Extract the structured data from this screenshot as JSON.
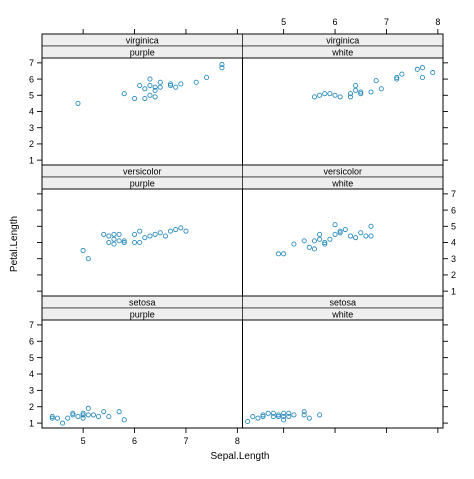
{
  "colors": {
    "point": "#2b8cbe",
    "strip_fill": "#eeeeee",
    "axis": "#000000"
  },
  "chart_data": {
    "type": "scatter",
    "xlabel": "Sepal.Length",
    "ylabel": "Petal.Length",
    "xlim": [
      4.2,
      8.1
    ],
    "ylim": [
      0.7,
      7.3
    ],
    "xticks": [
      5,
      6,
      7,
      8
    ],
    "yticks": [
      1,
      2,
      3,
      4,
      5,
      6,
      7
    ],
    "grid": false,
    "layout": "2 columns x 3 rows",
    "panels": [
      {
        "species": "setosa",
        "color": "purple",
        "col": 0,
        "row": 2,
        "points": [
          [
            4.4,
            1.4
          ],
          [
            4.5,
            1.3
          ],
          [
            4.6,
            1.0
          ],
          [
            4.7,
            1.3
          ],
          [
            4.8,
            1.5
          ],
          [
            4.8,
            1.6
          ],
          [
            4.9,
            1.4
          ],
          [
            5.0,
            1.5
          ],
          [
            5.0,
            1.3
          ],
          [
            5.0,
            1.6
          ],
          [
            5.1,
            1.9
          ],
          [
            5.1,
            1.5
          ],
          [
            5.2,
            1.5
          ],
          [
            5.3,
            1.4
          ],
          [
            5.4,
            1.7
          ],
          [
            5.7,
            1.7
          ],
          [
            5.8,
            1.2
          ],
          [
            5.5,
            1.4
          ],
          [
            4.4,
            1.3
          ]
        ]
      },
      {
        "species": "setosa",
        "color": "white",
        "col": 1,
        "row": 2,
        "points": [
          [
            4.3,
            1.1
          ],
          [
            4.4,
            1.4
          ],
          [
            4.6,
            1.4
          ],
          [
            4.6,
            1.5
          ],
          [
            4.7,
            1.6
          ],
          [
            4.8,
            1.6
          ],
          [
            4.8,
            1.4
          ],
          [
            4.9,
            1.5
          ],
          [
            4.9,
            1.4
          ],
          [
            5.0,
            1.2
          ],
          [
            5.0,
            1.4
          ],
          [
            5.0,
            1.6
          ],
          [
            5.1,
            1.4
          ],
          [
            5.1,
            1.6
          ],
          [
            5.2,
            1.5
          ],
          [
            5.4,
            1.7
          ],
          [
            5.4,
            1.5
          ],
          [
            5.5,
            1.3
          ],
          [
            5.7,
            1.5
          ],
          [
            4.5,
            1.3
          ]
        ]
      },
      {
        "species": "versicolor",
        "color": "purple",
        "col": 0,
        "row": 1,
        "points": [
          [
            5.0,
            3.5
          ],
          [
            5.1,
            3.0
          ],
          [
            5.5,
            4.0
          ],
          [
            5.5,
            4.4
          ],
          [
            5.6,
            3.9
          ],
          [
            5.6,
            4.5
          ],
          [
            5.6,
            4.2
          ],
          [
            5.7,
            4.1
          ],
          [
            5.7,
            4.5
          ],
          [
            5.8,
            4.0
          ],
          [
            5.8,
            4.1
          ],
          [
            6.0,
            4.5
          ],
          [
            6.0,
            4.0
          ],
          [
            6.1,
            4.0
          ],
          [
            6.1,
            4.7
          ],
          [
            6.2,
            4.3
          ],
          [
            6.3,
            4.4
          ],
          [
            6.4,
            4.5
          ],
          [
            6.5,
            4.6
          ],
          [
            6.6,
            4.4
          ],
          [
            6.7,
            4.7
          ],
          [
            6.8,
            4.8
          ],
          [
            6.9,
            4.9
          ],
          [
            7.0,
            4.7
          ],
          [
            5.4,
            4.5
          ]
        ]
      },
      {
        "species": "versicolor",
        "color": "white",
        "col": 1,
        "row": 1,
        "points": [
          [
            4.9,
            3.3
          ],
          [
            5.0,
            3.3
          ],
          [
            5.2,
            3.9
          ],
          [
            5.4,
            4.1
          ],
          [
            5.5,
            3.7
          ],
          [
            5.6,
            4.1
          ],
          [
            5.6,
            3.6
          ],
          [
            5.7,
            4.2
          ],
          [
            5.7,
            4.5
          ],
          [
            5.8,
            3.9
          ],
          [
            5.9,
            4.2
          ],
          [
            6.0,
            5.1
          ],
          [
            6.0,
            4.5
          ],
          [
            6.1,
            4.6
          ],
          [
            6.2,
            4.8
          ],
          [
            6.3,
            4.4
          ],
          [
            6.4,
            4.3
          ],
          [
            6.5,
            4.6
          ],
          [
            6.6,
            4.4
          ],
          [
            6.7,
            4.4
          ],
          [
            6.7,
            5.0
          ],
          [
            6.1,
            4.7
          ],
          [
            5.8,
            4.0
          ]
        ]
      },
      {
        "species": "virginica",
        "color": "purple",
        "col": 0,
        "row": 0,
        "points": [
          [
            4.9,
            4.5
          ],
          [
            5.8,
            5.1
          ],
          [
            6.0,
            4.8
          ],
          [
            6.1,
            5.6
          ],
          [
            6.2,
            5.4
          ],
          [
            6.3,
            5.0
          ],
          [
            6.3,
            5.6
          ],
          [
            6.3,
            6.0
          ],
          [
            6.4,
            5.5
          ],
          [
            6.4,
            5.3
          ],
          [
            6.5,
            5.8
          ],
          [
            6.5,
            5.5
          ],
          [
            6.7,
            5.7
          ],
          [
            6.7,
            5.6
          ],
          [
            6.8,
            5.5
          ],
          [
            6.9,
            5.7
          ],
          [
            7.2,
            5.8
          ],
          [
            7.4,
            6.1
          ],
          [
            7.7,
            6.7
          ],
          [
            7.7,
            6.9
          ],
          [
            6.2,
            4.8
          ],
          [
            6.4,
            4.9
          ]
        ]
      },
      {
        "species": "virginica",
        "color": "white",
        "col": 1,
        "row": 0,
        "points": [
          [
            5.6,
            4.9
          ],
          [
            5.7,
            5.0
          ],
          [
            5.8,
            5.1
          ],
          [
            5.9,
            5.1
          ],
          [
            6.0,
            5.0
          ],
          [
            6.1,
            4.9
          ],
          [
            6.3,
            4.9
          ],
          [
            6.3,
            5.1
          ],
          [
            6.4,
            5.3
          ],
          [
            6.5,
            5.2
          ],
          [
            6.5,
            5.1
          ],
          [
            6.7,
            5.2
          ],
          [
            6.8,
            5.9
          ],
          [
            6.9,
            5.4
          ],
          [
            7.2,
            6.1
          ],
          [
            7.2,
            6.0
          ],
          [
            7.3,
            6.3
          ],
          [
            7.6,
            6.6
          ],
          [
            7.7,
            6.7
          ],
          [
            7.9,
            6.4
          ],
          [
            7.7,
            6.1
          ],
          [
            6.4,
            5.6
          ]
        ]
      }
    ]
  }
}
